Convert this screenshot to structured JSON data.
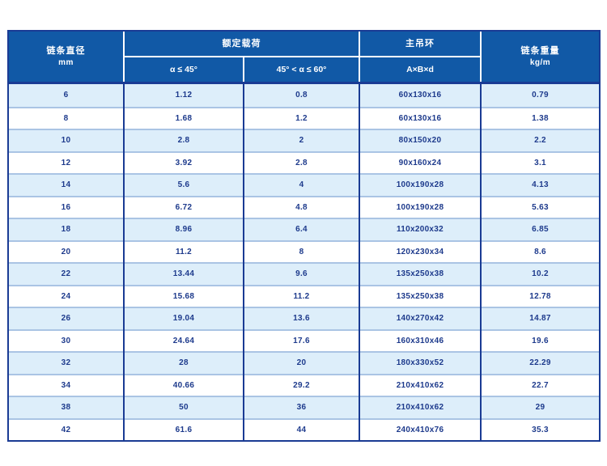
{
  "colors": {
    "header_blue": "#1159a6",
    "border_navy": "#1a3b94",
    "row_light_blue": "#ddeefa",
    "row_white": "#ffffff",
    "row_separator": "#aac4e4",
    "cell_text": "#1d3a8c",
    "header_text": "#ffffff"
  },
  "table": {
    "header": {
      "diameter_cn": "链条直径",
      "diameter_unit": "mm",
      "rated_load": "额定载荷",
      "sub_alpha_45": "α ≤ 45°",
      "sub_alpha_60": "45° < α ≤ 60°",
      "main_ring": "主吊环",
      "main_ring_sub": "A×B×d",
      "chain_weight_cn": "链条重量",
      "chain_weight_unit": "kg/m"
    },
    "columns_keys": [
      "diameter",
      "load_a45",
      "load_a60",
      "ring",
      "weight"
    ],
    "rows": [
      {
        "diameter": "6",
        "load_a45": "1.12",
        "load_a60": "0.8",
        "ring": "60x130x16",
        "weight": "0.79"
      },
      {
        "diameter": "8",
        "load_a45": "1.68",
        "load_a60": "1.2",
        "ring": "60x130x16",
        "weight": "1.38"
      },
      {
        "diameter": "10",
        "load_a45": "2.8",
        "load_a60": "2",
        "ring": "80x150x20",
        "weight": "2.2"
      },
      {
        "diameter": "12",
        "load_a45": "3.92",
        "load_a60": "2.8",
        "ring": "90x160x24",
        "weight": "3.1"
      },
      {
        "diameter": "14",
        "load_a45": "5.6",
        "load_a60": "4",
        "ring": "100x190x28",
        "weight": "4.13"
      },
      {
        "diameter": "16",
        "load_a45": "6.72",
        "load_a60": "4.8",
        "ring": "100x190x28",
        "weight": "5.63"
      },
      {
        "diameter": "18",
        "load_a45": "8.96",
        "load_a60": "6.4",
        "ring": "110x200x32",
        "weight": "6.85"
      },
      {
        "diameter": "20",
        "load_a45": "11.2",
        "load_a60": "8",
        "ring": "120x230x34",
        "weight": "8.6"
      },
      {
        "diameter": "22",
        "load_a45": "13.44",
        "load_a60": "9.6",
        "ring": "135x250x38",
        "weight": "10.2"
      },
      {
        "diameter": "24",
        "load_a45": "15.68",
        "load_a60": "11.2",
        "ring": "135x250x38",
        "weight": "12.78"
      },
      {
        "diameter": "26",
        "load_a45": "19.04",
        "load_a60": "13.6",
        "ring": "140x270x42",
        "weight": "14.87"
      },
      {
        "diameter": "30",
        "load_a45": "24.64",
        "load_a60": "17.6",
        "ring": "160x310x46",
        "weight": "19.6"
      },
      {
        "diameter": "32",
        "load_a45": "28",
        "load_a60": "20",
        "ring": "180x330x52",
        "weight": "22.29"
      },
      {
        "diameter": "34",
        "load_a45": "40.66",
        "load_a60": "29.2",
        "ring": "210x410x62",
        "weight": "22.7"
      },
      {
        "diameter": "38",
        "load_a45": "50",
        "load_a60": "36",
        "ring": "210x410x62",
        "weight": "29"
      },
      {
        "diameter": "42",
        "load_a45": "61.6",
        "load_a60": "44",
        "ring": "240x410x76",
        "weight": "35.3"
      }
    ]
  }
}
